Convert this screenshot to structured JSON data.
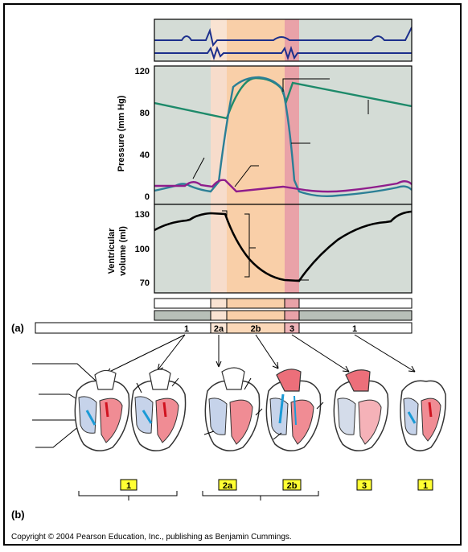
{
  "figure": {
    "panel_a_label": "(a)",
    "panel_b_label": "(b)",
    "copyright": "Copyright © 2004 Pearson Education, Inc., publishing as Benjamin Cummings."
  },
  "pressure_chart": {
    "ylabel": "Pressure (mm Hg)",
    "ticks": [
      "120",
      "80",
      "40",
      "0"
    ],
    "ylim": [
      0,
      120
    ]
  },
  "volume_chart": {
    "ylabel_line1": "Ventricular",
    "ylabel_line2": "volume (ml)",
    "ticks": [
      "130",
      "100",
      "70"
    ],
    "ylim": [
      70,
      130
    ]
  },
  "phase_bar": {
    "labels": [
      "1",
      "2a",
      "2b",
      "3",
      "1"
    ]
  },
  "phase_badges": {
    "labels": [
      "1",
      "2a",
      "2b",
      "3",
      "1"
    ]
  },
  "colors": {
    "aortic": "#1d8a6a",
    "ventricular": "#2b7f96",
    "atrial": "#8f1d8c",
    "volume": "#000000",
    "ecg": "#1c2f8c",
    "chart_bg": "#d4dcd6",
    "isovolumetric_contraction": "#f7d5c0",
    "ejection": "#f9cfa8",
    "isovolumetric_relaxation": "#e9a2a8",
    "badge": "#ffff33"
  }
}
